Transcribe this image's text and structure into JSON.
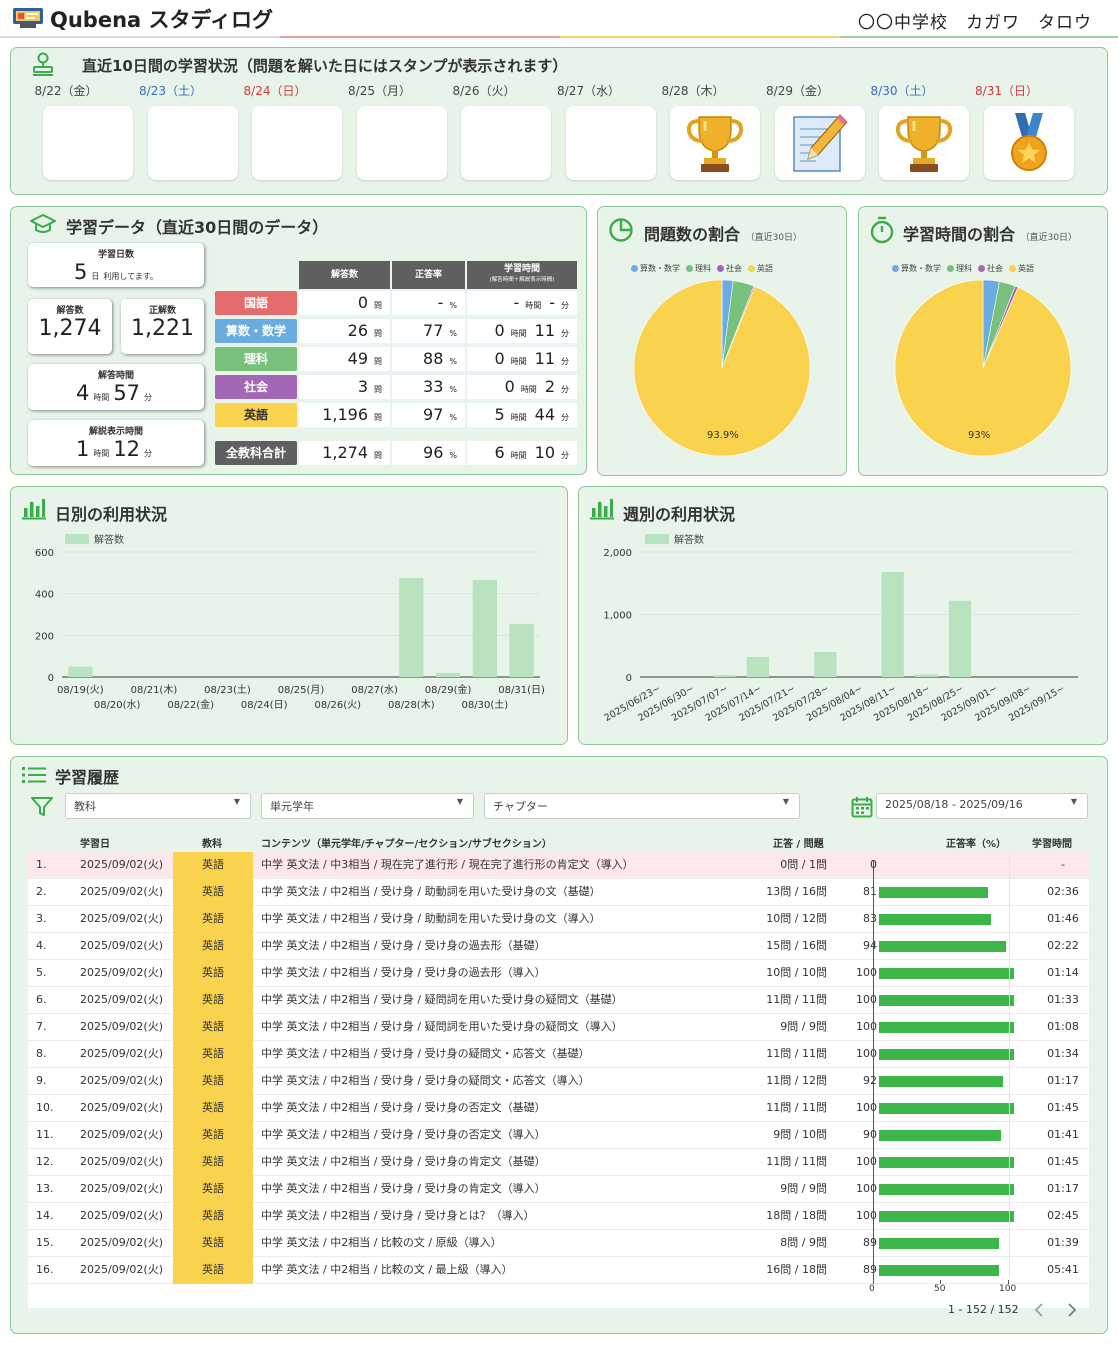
{
  "header": {
    "app_title": "Qubena スタディログ",
    "school": "〇〇中学校",
    "user_name": "カガワ　タロウ"
  },
  "stamps": {
    "title": "直近10日間の学習状況（問題を解いた日にはスタンプが表示されます）",
    "days": [
      {
        "label": "8/22（金）",
        "kind": "weekday",
        "stamp": ""
      },
      {
        "label": "8/23（土）",
        "kind": "sat",
        "stamp": ""
      },
      {
        "label": "8/24（日）",
        "kind": "sun",
        "stamp": ""
      },
      {
        "label": "8/25（月）",
        "kind": "weekday",
        "stamp": ""
      },
      {
        "label": "8/26（火）",
        "kind": "weekday",
        "stamp": ""
      },
      {
        "label": "8/27（水）",
        "kind": "weekday",
        "stamp": ""
      },
      {
        "label": "8/28（木）",
        "kind": "weekday",
        "stamp": "trophy-icon"
      },
      {
        "label": "8/29（金）",
        "kind": "weekday",
        "stamp": "notebook-pencil-icon"
      },
      {
        "label": "8/30（土）",
        "kind": "sat",
        "stamp": "trophy-icon"
      },
      {
        "label": "8/31（日）",
        "kind": "sun",
        "stamp": "medal-icon"
      }
    ]
  },
  "study_data": {
    "title": "学習データ（直近30日間のデータ）",
    "days_card": {
      "label": "学習日数",
      "value": "5",
      "unit": "日",
      "note": "利用してます。"
    },
    "answers_card": {
      "label": "解答数",
      "value": "1,274"
    },
    "correct_card": {
      "label": "正解数",
      "value": "1,221"
    },
    "time_card": {
      "label": "解答時間",
      "hours": "4",
      "hour_unit": "時間",
      "minutes": "57",
      "minute_unit": "分"
    },
    "explain_card": {
      "label": "解説表示時間",
      "hours": "1",
      "hour_unit": "時間",
      "minutes": "12",
      "minute_unit": "分"
    },
    "table_headers": {
      "answers": "解答数",
      "rate": "正答率",
      "time": "学習時間",
      "time_note": "(解答時間＋解説表示時間)"
    },
    "units": {
      "q": "問",
      "pct": "%",
      "hour": "時間",
      "min": "分"
    },
    "rows": [
      {
        "subject": "国語",
        "color": "#e46b6b",
        "answers": "0",
        "rate": "-",
        "hours": "-",
        "minutes": "-"
      },
      {
        "subject": "算数・数学",
        "color": "#6aace0",
        "answers": "26",
        "rate": "77",
        "hours": "0",
        "minutes": "11"
      },
      {
        "subject": "理科",
        "color": "#78c07c",
        "answers": "49",
        "rate": "88",
        "hours": "0",
        "minutes": "11"
      },
      {
        "subject": "社会",
        "color": "#a467b7",
        "answers": "3",
        "rate": "33",
        "hours": "0",
        "minutes": "2"
      },
      {
        "subject": "英語",
        "color": "#f9d34d",
        "answers": "1,196",
        "rate": "97",
        "hours": "5",
        "minutes": "44"
      }
    ],
    "total": {
      "subject": "全教科合計",
      "color": "#5f5f5f",
      "answers": "1,274",
      "rate": "96",
      "hours": "6",
      "minutes": "10"
    }
  },
  "pie_legend": [
    {
      "name": "算数・数学",
      "color": "#6aace0"
    },
    {
      "name": "理科",
      "color": "#78c07c"
    },
    {
      "name": "社会",
      "color": "#a467b7"
    },
    {
      "name": "英語",
      "color": "#f9d34d"
    }
  ],
  "chart_data": [
    {
      "type": "pie",
      "title": "問題数の割合",
      "subtitle": "（直近30日）",
      "labels": [
        "算数・数学",
        "理科",
        "社会",
        "英語"
      ],
      "values": [
        26,
        49,
        3,
        1196
      ],
      "data_label": "93.9%"
    },
    {
      "type": "pie",
      "title": "学習時間の割合",
      "subtitle": "（直近30日）",
      "labels": [
        "算数・数学",
        "理科",
        "社会",
        "英語"
      ],
      "values": [
        11,
        11,
        2,
        344
      ],
      "data_label": "93%"
    },
    {
      "type": "bar",
      "title": "日別の利用状況",
      "legend": "解答数",
      "categories": [
        "08/19(火)",
        "08/20(水)",
        "08/21(木)",
        "08/22(金)",
        "08/23(土)",
        "08/24(日)",
        "08/25(月)",
        "08/26(火)",
        "08/27(水)",
        "08/28(木)",
        "08/29(金)",
        "08/30(土)",
        "08/31(日)"
      ],
      "values": [
        50,
        0,
        0,
        0,
        0,
        0,
        0,
        0,
        0,
        475,
        20,
        465,
        255
      ],
      "yticks": [
        "0",
        "200",
        "400",
        "600"
      ],
      "ylim": [
        0,
        600
      ]
    },
    {
      "type": "bar",
      "title": "週別の利用状況",
      "legend": "解答数",
      "categories": [
        "2025/06/23~",
        "2025/06/30~",
        "2025/07/07~",
        "2025/07/14~",
        "2025/07/21~",
        "2025/07/28~",
        "2025/08/04~",
        "2025/08/11~",
        "2025/08/18~",
        "2025/08/25~",
        "2025/09/01~",
        "2025/09/08~",
        "2025/09/15~"
      ],
      "values": [
        0,
        0,
        30,
        320,
        0,
        400,
        0,
        1680,
        40,
        1220,
        0,
        0,
        0
      ],
      "yticks": [
        "0",
        "1,000",
        "2,000"
      ],
      "ylim": [
        0,
        2000
      ]
    }
  ],
  "history": {
    "title": "学習履歴",
    "filters": {
      "subject": "教科",
      "grade_unit": "単元学年",
      "chapter": "チャプター",
      "date_range": "2025/08/18 - 2025/09/16"
    },
    "headers": {
      "date": "学習日",
      "subject": "教科",
      "content": "コンテンツ（単元学年/チャプター/セクション/サブセクション）",
      "score": "正答 / 問題",
      "rate": "正答率（%）",
      "time": "学習時間"
    },
    "rows": [
      {
        "no": "1.",
        "date": "2025/09/02(火)",
        "subject": "英語",
        "content": "中学 英文法 / 中3相当 / 現在完了進行形 / 現在完了進行形の肯定文（導入）",
        "score": "0問 / 1問",
        "rate": 0,
        "time": "-"
      },
      {
        "no": "2.",
        "date": "2025/09/02(火)",
        "subject": "英語",
        "content": "中学 英文法 / 中2相当 / 受け身 / 助動詞を用いた受け身の文（基礎）",
        "score": "13問 / 16問",
        "rate": 81,
        "time": "02:36"
      },
      {
        "no": "3.",
        "date": "2025/09/02(火)",
        "subject": "英語",
        "content": "中学 英文法 / 中2相当 / 受け身 / 助動詞を用いた受け身の文（導入）",
        "score": "10問 / 12問",
        "rate": 83,
        "time": "01:46"
      },
      {
        "no": "4.",
        "date": "2025/09/02(火)",
        "subject": "英語",
        "content": "中学 英文法 / 中2相当 / 受け身 / 受け身の過去形（基礎）",
        "score": "15問 / 16問",
        "rate": 94,
        "time": "02:22"
      },
      {
        "no": "5.",
        "date": "2025/09/02(火)",
        "subject": "英語",
        "content": "中学 英文法 / 中2相当 / 受け身 / 受け身の過去形（導入）",
        "score": "10問 / 10問",
        "rate": 100,
        "time": "01:14"
      },
      {
        "no": "6.",
        "date": "2025/09/02(火)",
        "subject": "英語",
        "content": "中学 英文法 / 中2相当 / 受け身 / 疑問詞を用いた受け身の疑問文（基礎）",
        "score": "11問 / 11問",
        "rate": 100,
        "time": "01:33"
      },
      {
        "no": "7.",
        "date": "2025/09/02(火)",
        "subject": "英語",
        "content": "中学 英文法 / 中2相当 / 受け身 / 疑問詞を用いた受け身の疑問文（導入）",
        "score": "9問 / 9問",
        "rate": 100,
        "time": "01:08"
      },
      {
        "no": "8.",
        "date": "2025/09/02(火)",
        "subject": "英語",
        "content": "中学 英文法 / 中2相当 / 受け身 / 受け身の疑問文・応答文（基礎）",
        "score": "11問 / 11問",
        "rate": 100,
        "time": "01:34"
      },
      {
        "no": "9.",
        "date": "2025/09/02(火)",
        "subject": "英語",
        "content": "中学 英文法 / 中2相当 / 受け身 / 受け身の疑問文・応答文（導入）",
        "score": "11問 / 12問",
        "rate": 92,
        "time": "01:17"
      },
      {
        "no": "10.",
        "date": "2025/09/02(火)",
        "subject": "英語",
        "content": "中学 英文法 / 中2相当 / 受け身 / 受け身の否定文（基礎）",
        "score": "11問 / 11問",
        "rate": 100,
        "time": "01:45"
      },
      {
        "no": "11.",
        "date": "2025/09/02(火)",
        "subject": "英語",
        "content": "中学 英文法 / 中2相当 / 受け身 / 受け身の否定文（導入）",
        "score": "9問 / 10問",
        "rate": 90,
        "time": "01:41"
      },
      {
        "no": "12.",
        "date": "2025/09/02(火)",
        "subject": "英語",
        "content": "中学 英文法 / 中2相当 / 受け身 / 受け身の肯定文（基礎）",
        "score": "11問 / 11問",
        "rate": 100,
        "time": "01:45"
      },
      {
        "no": "13.",
        "date": "2025/09/02(火)",
        "subject": "英語",
        "content": "中学 英文法 / 中2相当 / 受け身 / 受け身の肯定文（導入）",
        "score": "9問 / 9問",
        "rate": 100,
        "time": "01:17"
      },
      {
        "no": "14.",
        "date": "2025/09/02(火)",
        "subject": "英語",
        "content": "中学 英文法 / 中2相当 / 受け身 / 受け身とは？（導入）",
        "score": "18問 / 18問",
        "rate": 100,
        "time": "02:45"
      },
      {
        "no": "15.",
        "date": "2025/09/02(火)",
        "subject": "英語",
        "content": "中学 英文法 / 中2相当 / 比較の文 / 原級（導入）",
        "score": "8問 / 9問",
        "rate": 89,
        "time": "01:39"
      },
      {
        "no": "16.",
        "date": "2025/09/02(火)",
        "subject": "英語",
        "content": "中学 英文法 / 中2相当 / 比較の文 / 最上級（導入）",
        "score": "16問 / 18問",
        "rate": 89,
        "time": "05:41"
      }
    ],
    "rate_axis": [
      "0",
      "50",
      "100"
    ],
    "pagination": "1 - 152 / 152"
  }
}
